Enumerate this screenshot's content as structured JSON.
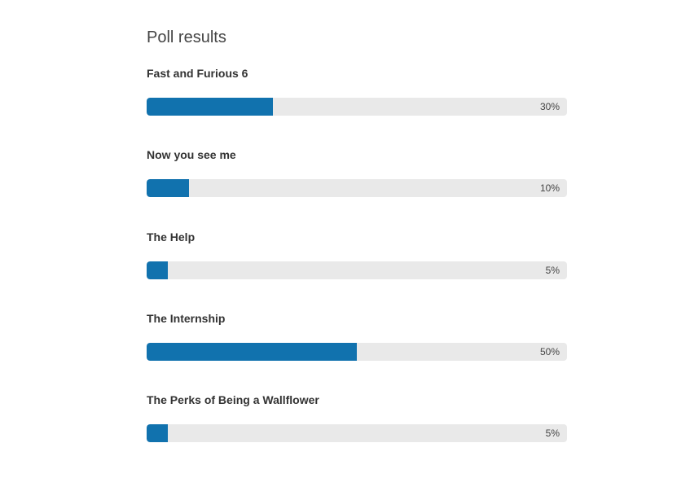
{
  "poll": {
    "title": "Poll results",
    "options": [
      {
        "label": "Fast and Furious 6",
        "percent": 30,
        "percent_text": "30%"
      },
      {
        "label": "Now you see me",
        "percent": 10,
        "percent_text": "10%"
      },
      {
        "label": "The Help",
        "percent": 5,
        "percent_text": "5%"
      },
      {
        "label": "The Internship",
        "percent": 50,
        "percent_text": "50%"
      },
      {
        "label": "The Perks of Being a Wallflower",
        "percent": 5,
        "percent_text": "5%"
      }
    ]
  },
  "colors": {
    "bar_fill": "#1172ae",
    "bar_track": "#e9e9e9",
    "title_text": "#444444",
    "label_text": "#333333"
  }
}
